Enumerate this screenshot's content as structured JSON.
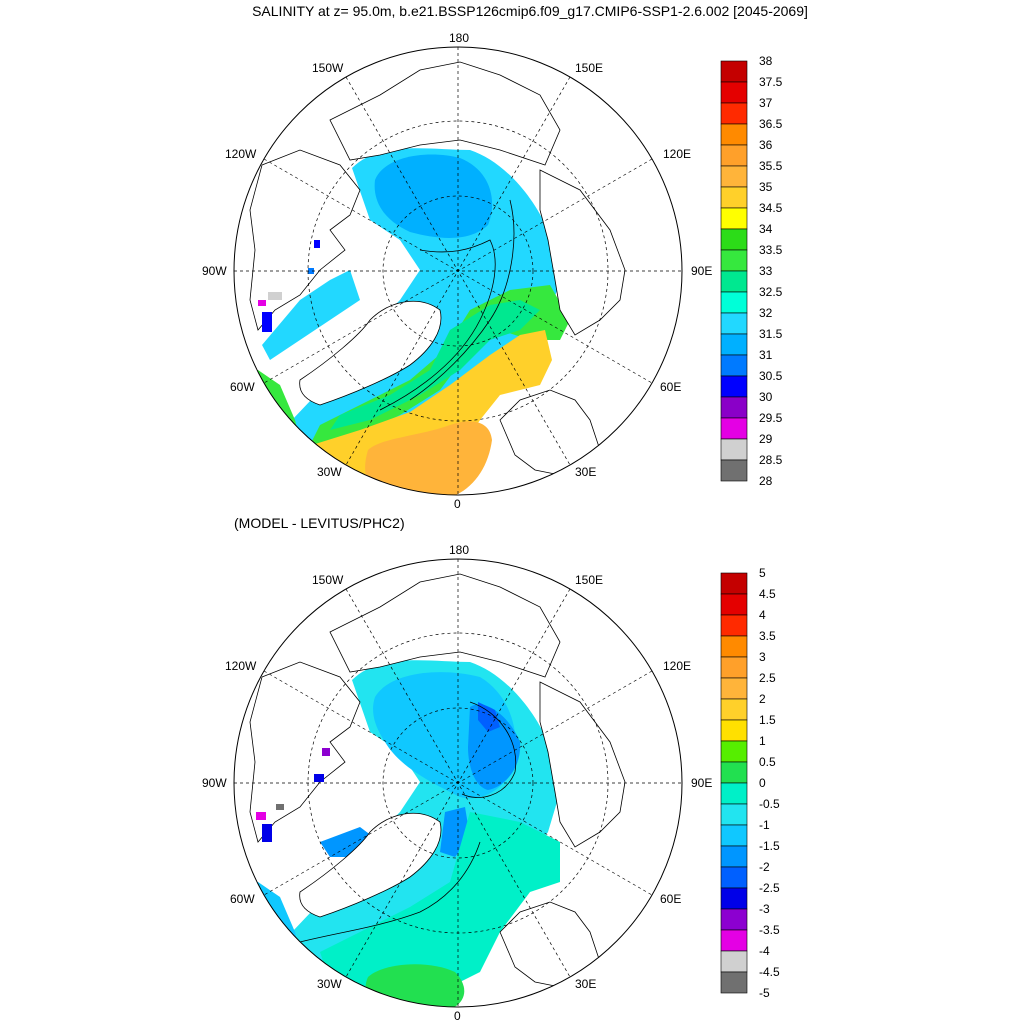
{
  "title": "SALINITY at z=  95.0m, b.e21.BSSP126cmip6.f09_g17.CMIP6-SSP1-2.6.002 [2045-2069]",
  "subtitle": "(MODEL - LEVITUS/PHC2)",
  "longitude_labels": {
    "lon_180": "180",
    "lon_150w": "150W",
    "lon_150e": "150E",
    "lon_120w": "120W",
    "lon_120e": "120E",
    "lon_90w": "90W",
    "lon_90e": "90E",
    "lon_60w": "60W",
    "lon_60e": "60E",
    "lon_30w": "30W",
    "lon_30e": "30E",
    "lon_0": "0"
  },
  "colorbar_top": {
    "labels": [
      "38",
      "37.5",
      "37",
      "36.5",
      "36",
      "35.5",
      "35",
      "34.5",
      "34",
      "33.5",
      "33",
      "32.5",
      "32",
      "31.5",
      "31",
      "30.5",
      "30",
      "29.5",
      "29",
      "28.5",
      "28"
    ],
    "colors": [
      "#c40000",
      "#e40000",
      "#ff2a00",
      "#ff8a00",
      "#ffa02a",
      "#ffb43a",
      "#ffd02a",
      "#ffff00",
      "#2cdc18",
      "#36e83e",
      "#00e890",
      "#00ffd8",
      "#22d8ff",
      "#00b0ff",
      "#007aff",
      "#0000ff",
      "#8a00c8",
      "#e400e4",
      "#d0d0d0",
      "#707070"
    ]
  },
  "colorbar_bottom": {
    "labels": [
      "5",
      "4.5",
      "4",
      "3.5",
      "3",
      "2.5",
      "2",
      "1.5",
      "1",
      "0.5",
      "0",
      "-0.5",
      "-1",
      "-1.5",
      "-2",
      "-2.5",
      "-3",
      "-3.5",
      "-4",
      "-4.5",
      "-5"
    ],
    "colors": [
      "#c40000",
      "#e40000",
      "#ff2a00",
      "#ff8a00",
      "#ffa02a",
      "#ffb43a",
      "#ffd02a",
      "#ffe000",
      "#56ee00",
      "#22e050",
      "#00f0c8",
      "#22e4f0",
      "#10c8ff",
      "#0096ff",
      "#0060ff",
      "#0000e8",
      "#8c00d0",
      "#e400e4",
      "#d0d0d0",
      "#707070"
    ]
  },
  "colors": {
    "cyan": "#22d8ff",
    "sky": "#00b0ff",
    "aqua": "#00ffd8",
    "teal": "#00e890",
    "green": "#36e83e",
    "yellow": "#ffd02a",
    "orange": "#ffb43a",
    "blue": "#007aff",
    "magenta": "#e400e4",
    "purple": "#8a00c8",
    "darkblue": "#0000ff",
    "gray": "#d0d0d0",
    "dgray": "#707070"
  }
}
